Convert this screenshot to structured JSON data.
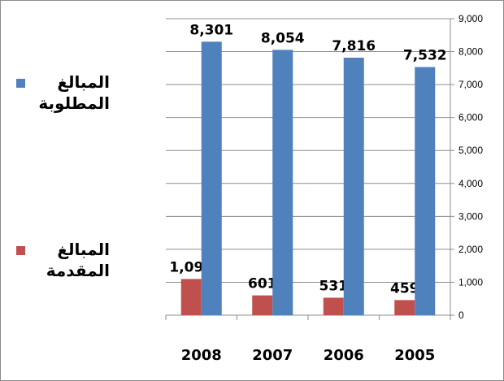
{
  "chart_data": {
    "type": "bar",
    "categories": [
      "2008",
      "2007",
      "2006",
      "2005"
    ],
    "series": [
      {
        "name": "المبالغ المقدمة",
        "values": [
          1099,
          601,
          531,
          459
        ],
        "labels": [
          "1,099",
          "601",
          "531",
          "459"
        ],
        "color": "#c0504d"
      },
      {
        "name": "المبالغ المطلوبة",
        "values": [
          8301,
          8054,
          7816,
          7532
        ],
        "labels": [
          "8,301",
          "8,054",
          "7,816",
          "7,532"
        ],
        "color": "#4f81bd"
      }
    ],
    "y_ticks": [
      "0",
      "1,000",
      "2,000",
      "3,000",
      "4,000",
      "5,000",
      "6,000",
      "7,000",
      "8,000",
      "9,000"
    ],
    "ylim": [
      0,
      9000
    ],
    "y_axis_side": "right",
    "grid": true,
    "legend_position": "left",
    "gridline_color": "#8c8c8c"
  },
  "legend": {
    "items": [
      {
        "label": "المبالغ المطلوبة",
        "color": "#4f81bd"
      },
      {
        "label": "المبالغ المقدمة",
        "color": "#c0504d"
      }
    ]
  }
}
